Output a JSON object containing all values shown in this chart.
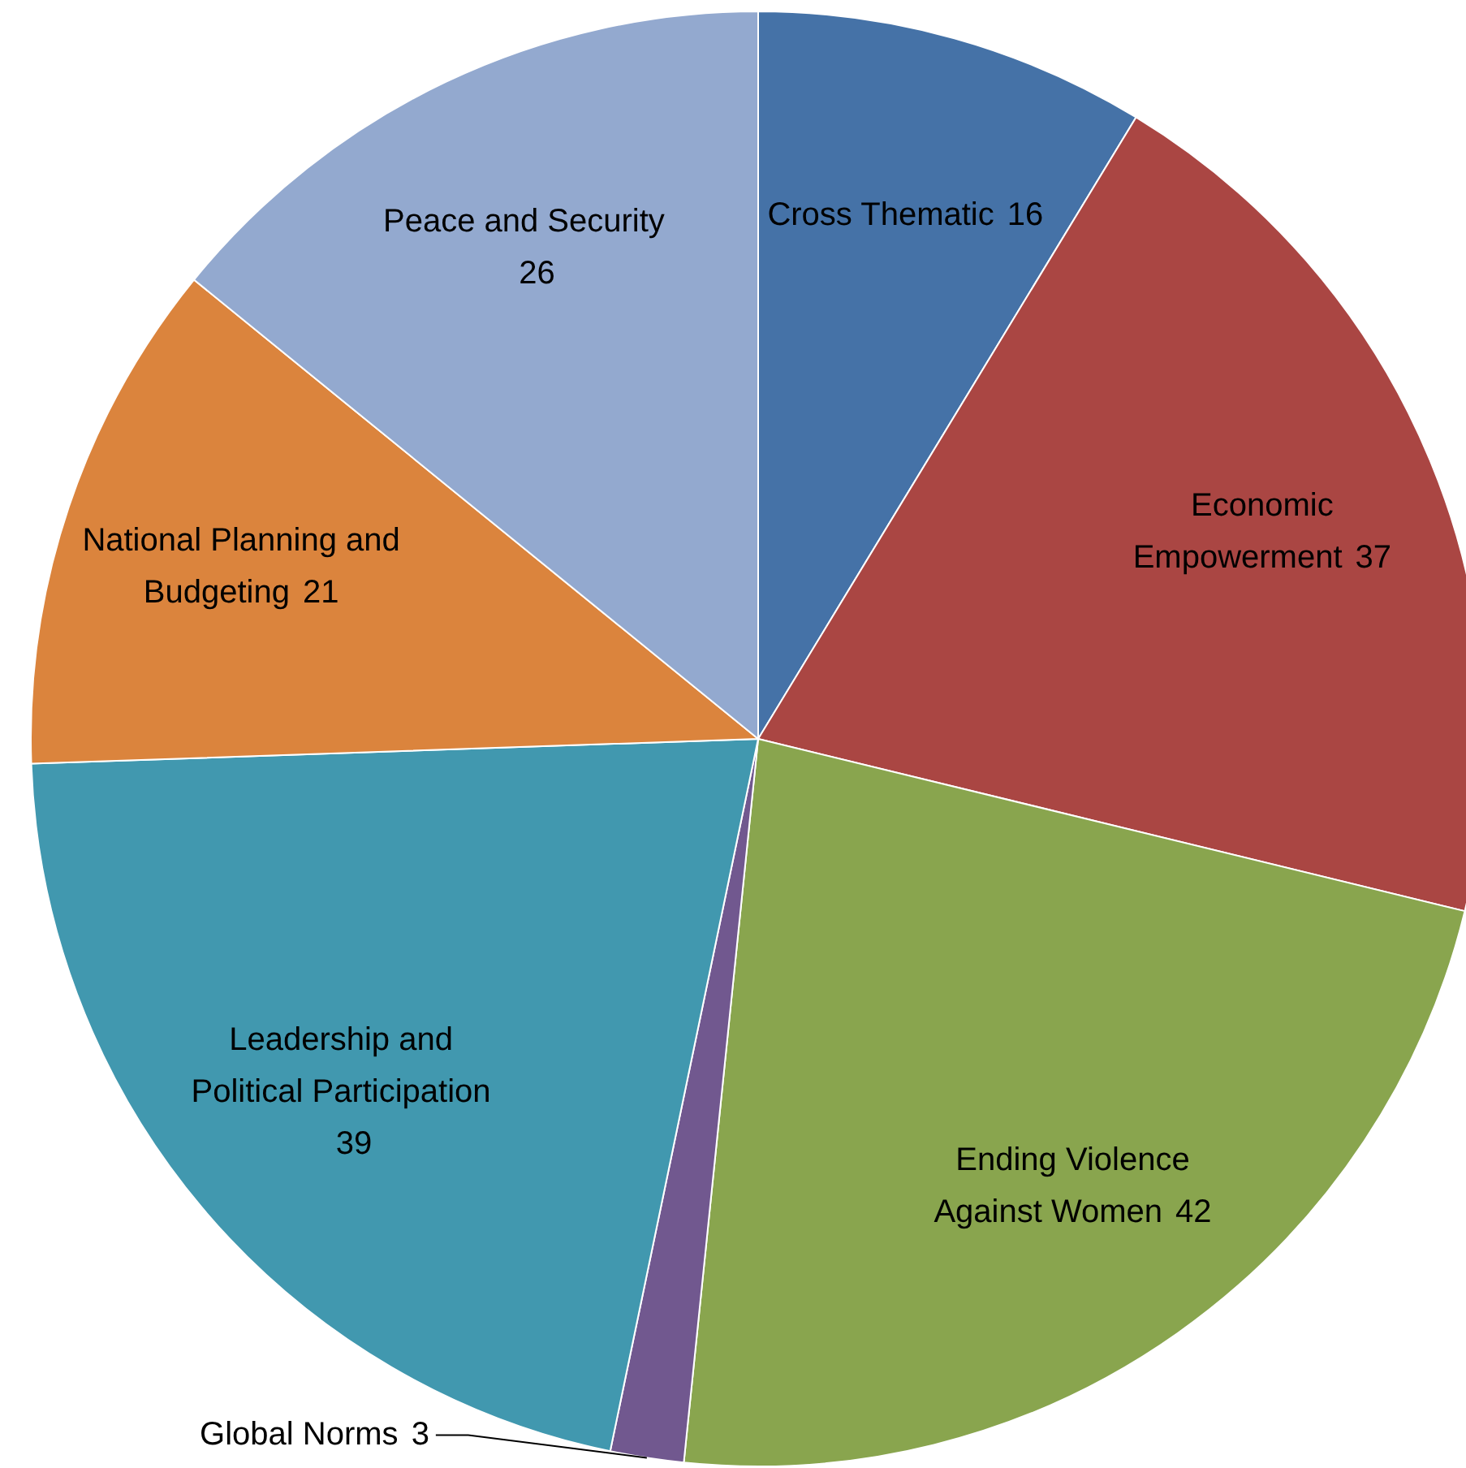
{
  "chart_data": {
    "type": "pie",
    "categories": [
      "Cross Thematic",
      "Economic Empowerment",
      "Ending Violence Against Women",
      "Global Norms",
      "Leadership and Political Participation",
      "National Planning and Budgeting",
      "Peace and Security"
    ],
    "values": [
      16,
      37,
      42,
      3,
      39,
      21,
      26
    ],
    "colors": [
      "#4572a7",
      "#aa4643",
      "#89a54e",
      "#71588f",
      "#4198af",
      "#db843d",
      "#93a9cf"
    ],
    "data_labels": true,
    "legend": false
  }
}
